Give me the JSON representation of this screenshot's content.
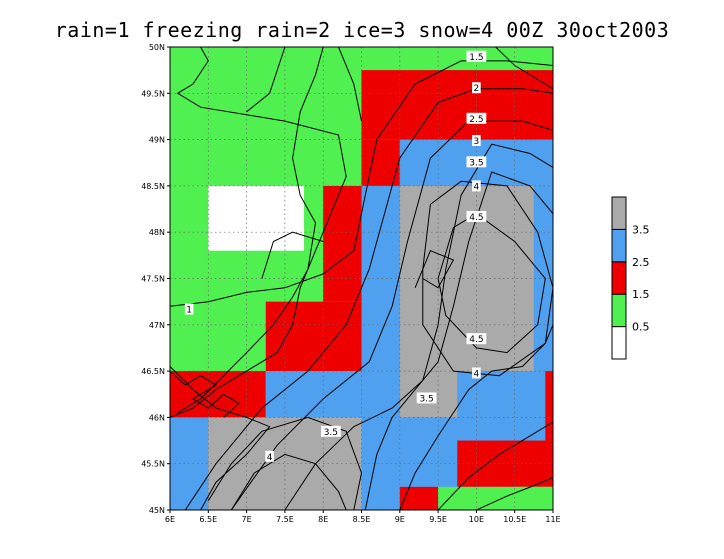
{
  "title": "rain=1  freezing rain=2  ice=3  snow=4  00Z 30oct2003",
  "chart_data": {
    "type": "heatmap",
    "x_range": [
      6,
      11
    ],
    "y_range": [
      45,
      50
    ],
    "x_ticks": [
      "6E",
      "6.5E",
      "7E",
      "7.5E",
      "8E",
      "8.5E",
      "9E",
      "9.5E",
      "10E",
      "10.5E",
      "11E"
    ],
    "y_ticks": [
      "45N",
      "45.5N",
      "46N",
      "46.5N",
      "47N",
      "47.5N",
      "48N",
      "48.5N",
      "49N",
      "49.5N",
      "50N"
    ],
    "legend": {
      "colors": [
        "#ffffff",
        "#50f050",
        "#ee0000",
        "#50a0f0",
        "#aaaaaa"
      ],
      "labels": [
        "0.5",
        "1.5",
        "2.5",
        "3.5"
      ]
    },
    "colors": {
      "0": "#ffffff",
      "1": "#50f050",
      "2": "#ee0000",
      "3": "#50a0f0",
      "4": "#aaaaaa"
    },
    "cells": [
      {
        "x0": 6,
        "x1": 11,
        "y0": 45,
        "y1": 50,
        "v": 1
      },
      {
        "x0": 8.5,
        "x1": 11,
        "y0": 49,
        "y1": 49.75,
        "v": 2
      },
      {
        "x0": 8.5,
        "x1": 9,
        "y0": 48.5,
        "y1": 49,
        "v": 2
      },
      {
        "x0": 9,
        "x1": 11,
        "y0": 48.5,
        "y1": 49,
        "v": 3
      },
      {
        "x0": 8.5,
        "x1": 11,
        "y0": 46.5,
        "y1": 48.5,
        "v": 3
      },
      {
        "x0": 8,
        "x1": 8.5,
        "y0": 47.25,
        "y1": 48.5,
        "v": 2
      },
      {
        "x0": 7.25,
        "x1": 8.5,
        "y0": 46.5,
        "y1": 47.25,
        "v": 2
      },
      {
        "x0": 6,
        "x1": 7.25,
        "y0": 46,
        "y1": 46.5,
        "v": 2
      },
      {
        "x0": 7.25,
        "x1": 11,
        "y0": 46,
        "y1": 46.5,
        "v": 3
      },
      {
        "x0": 6,
        "x1": 8.5,
        "y0": 45,
        "y1": 46,
        "v": 3
      },
      {
        "x0": 8.5,
        "x1": 9,
        "y0": 45,
        "y1": 46,
        "v": 3
      },
      {
        "x0": 9,
        "x1": 11,
        "y0": 45,
        "y1": 46,
        "v": 3
      },
      {
        "x0": 9,
        "x1": 10.75,
        "y0": 46.5,
        "y1": 48.5,
        "v": 4
      },
      {
        "x0": 9,
        "x1": 9.75,
        "y0": 46,
        "y1": 46.5,
        "v": 4
      },
      {
        "x0": 6.5,
        "x1": 8.5,
        "y0": 45,
        "y1": 46,
        "v": 4
      },
      {
        "x0": 10.75,
        "x1": 11,
        "y0": 46.5,
        "y1": 48.5,
        "v": 3
      },
      {
        "x0": 9.75,
        "x1": 11,
        "y0": 45.75,
        "y1": 46,
        "v": 3
      },
      {
        "x0": 9.75,
        "x1": 10.75,
        "y0": 46,
        "y1": 46.5,
        "v": 3
      },
      {
        "x0": 9.75,
        "x1": 11,
        "y0": 45.25,
        "y1": 45.75,
        "v": 2
      },
      {
        "x0": 10.9,
        "x1": 11,
        "y0": 45.75,
        "y1": 46.5,
        "v": 2
      },
      {
        "x0": 9,
        "x1": 9.5,
        "y0": 45,
        "y1": 45.25,
        "v": 2
      },
      {
        "x0": 9.5,
        "x1": 11,
        "y0": 45,
        "y1": 45.25,
        "v": 1
      },
      {
        "x0": 10.5,
        "x1": 11,
        "y0": 45.15,
        "y1": 45.25,
        "v": 1
      },
      {
        "x0": 6.5,
        "x1": 7.75,
        "y0": 47.8,
        "y1": 48.5,
        "v": 0
      },
      {
        "x0": 9,
        "x1": 10.75,
        "y0": 48.5,
        "y1": 49,
        "v": 3
      },
      {
        "x0": 8.5,
        "x1": 9,
        "y0": 46.5,
        "y1": 47.25,
        "v": 3
      }
    ],
    "contour_labels": [
      {
        "text": "1.5",
        "x": 10.0,
        "y": 49.9
      },
      {
        "text": "2",
        "x": 10.0,
        "y": 49.56
      },
      {
        "text": "2.5",
        "x": 10.0,
        "y": 49.23
      },
      {
        "text": "3",
        "x": 10.0,
        "y": 48.99
      },
      {
        "text": "3.5",
        "x": 10.0,
        "y": 48.76
      },
      {
        "text": "4",
        "x": 10.0,
        "y": 48.5
      },
      {
        "text": "4.5",
        "x": 10.0,
        "y": 48.17
      },
      {
        "text": "4.5",
        "x": 10.0,
        "y": 46.85
      },
      {
        "text": "4",
        "x": 10.0,
        "y": 46.48
      },
      {
        "text": "3.5",
        "x": 9.35,
        "y": 46.21
      },
      {
        "text": "3.5",
        "x": 8.1,
        "y": 45.85
      },
      {
        "text": "4",
        "x": 7.3,
        "y": 45.58
      },
      {
        "text": "1",
        "x": 6.25,
        "y": 47.17
      }
    ],
    "contours": [
      [
        [
          6.0,
          47.2
        ],
        [
          6.5,
          47.25
        ],
        [
          7.0,
          47.35
        ],
        [
          7.5,
          47.4
        ],
        [
          8.0,
          47.55
        ],
        [
          8.4,
          47.8
        ],
        [
          8.55,
          48.4
        ],
        [
          8.7,
          49.0
        ],
        [
          9.2,
          49.6
        ],
        [
          9.8,
          49.85
        ],
        [
          10.4,
          49.85
        ],
        [
          11.0,
          49.8
        ]
      ],
      [
        [
          6.2,
          45.0
        ],
        [
          6.6,
          45.5
        ],
        [
          7.2,
          46.1
        ],
        [
          7.8,
          46.5
        ],
        [
          8.3,
          47.0
        ],
        [
          8.6,
          47.6
        ],
        [
          8.8,
          48.2
        ],
        [
          9.0,
          48.8
        ],
        [
          9.5,
          49.4
        ],
        [
          10.0,
          49.55
        ],
        [
          10.6,
          49.55
        ],
        [
          11.0,
          49.5
        ]
      ],
      [
        [
          6.8,
          45.0
        ],
        [
          7.4,
          45.7
        ],
        [
          8.0,
          46.2
        ],
        [
          8.6,
          46.6
        ],
        [
          8.9,
          47.2
        ],
        [
          9.1,
          47.9
        ],
        [
          9.4,
          48.8
        ],
        [
          9.9,
          49.2
        ],
        [
          10.6,
          49.2
        ],
        [
          11.0,
          49.1
        ]
      ],
      [
        [
          7.5,
          45.0
        ],
        [
          7.9,
          45.5
        ],
        [
          8.4,
          45.9
        ],
        [
          8.9,
          46.1
        ],
        [
          9.3,
          46.4
        ],
        [
          9.5,
          47.0
        ],
        [
          9.6,
          47.6
        ],
        [
          9.8,
          48.4
        ],
        [
          10.2,
          48.95
        ],
        [
          10.7,
          48.85
        ],
        [
          11.0,
          48.7
        ]
      ],
      [
        [
          8.55,
          45.0
        ],
        [
          8.7,
          45.6
        ],
        [
          8.9,
          46.0
        ],
        [
          9.2,
          46.3
        ],
        [
          9.5,
          46.6
        ],
        [
          9.7,
          47.2
        ],
        [
          9.9,
          47.9
        ],
        [
          10.2,
          48.65
        ],
        [
          10.7,
          48.5
        ],
        [
          11.0,
          48.2
        ]
      ],
      [
        [
          9.0,
          45.0
        ],
        [
          9.2,
          45.4
        ],
        [
          9.5,
          45.8
        ],
        [
          9.9,
          46.3
        ],
        [
          10.2,
          46.5
        ],
        [
          10.6,
          46.55
        ],
        [
          10.9,
          46.8
        ],
        [
          11.0,
          47.0
        ]
      ],
      [
        [
          9.5,
          45.0
        ],
        [
          9.9,
          45.35
        ],
        [
          10.3,
          45.6
        ],
        [
          10.7,
          45.8
        ],
        [
          11.0,
          45.95
        ]
      ],
      [
        [
          10.0,
          45.0
        ],
        [
          10.4,
          45.15
        ],
        [
          10.8,
          45.28
        ],
        [
          11.0,
          45.35
        ]
      ],
      [
        [
          9.5,
          47.5
        ],
        [
          9.7,
          48.05
        ],
        [
          10.0,
          48.2
        ],
        [
          10.5,
          47.9
        ],
        [
          10.9,
          47.5
        ],
        [
          10.8,
          47.0
        ],
        [
          10.4,
          46.7
        ],
        [
          10.0,
          46.75
        ],
        [
          9.6,
          47.1
        ],
        [
          9.5,
          47.5
        ]
      ],
      [
        [
          9.3,
          47.6
        ],
        [
          9.4,
          48.3
        ],
        [
          9.8,
          48.55
        ],
        [
          10.4,
          48.5
        ],
        [
          10.8,
          48.0
        ],
        [
          11.0,
          47.4
        ],
        [
          10.9,
          46.8
        ],
        [
          10.3,
          46.45
        ],
        [
          9.7,
          46.5
        ],
        [
          9.3,
          47.0
        ],
        [
          9.3,
          47.6
        ]
      ],
      [
        [
          6.5,
          45.1
        ],
        [
          6.8,
          45.5
        ],
        [
          7.2,
          45.85
        ],
        [
          7.8,
          46.0
        ],
        [
          8.3,
          45.85
        ],
        [
          8.5,
          45.4
        ],
        [
          8.4,
          45.0
        ]
      ],
      [
        [
          6.8,
          45.0
        ],
        [
          7.1,
          45.4
        ],
        [
          7.5,
          45.6
        ],
        [
          7.9,
          45.5
        ],
        [
          8.2,
          45.2
        ],
        [
          8.3,
          45.0
        ]
      ],
      [
        [
          6.4,
          50.0
        ],
        [
          6.5,
          49.85
        ],
        [
          6.3,
          49.6
        ],
        [
          6.1,
          49.5
        ],
        [
          6.4,
          49.35
        ],
        [
          7.5,
          49.2
        ],
        [
          8.2,
          49.05
        ],
        [
          8.3,
          48.6
        ],
        [
          8.1,
          48.2
        ],
        [
          7.9,
          47.8
        ],
        [
          7.7,
          47.4
        ],
        [
          7.6,
          47.0
        ],
        [
          7.4,
          46.7
        ],
        [
          7.0,
          46.5
        ],
        [
          6.6,
          46.3
        ],
        [
          6.3,
          46.1
        ],
        [
          6.0,
          46.0
        ]
      ],
      [
        [
          7.5,
          50.0
        ],
        [
          7.3,
          49.5
        ],
        [
          7.0,
          49.3
        ]
      ],
      [
        [
          8.0,
          50.0
        ],
        [
          7.9,
          49.7
        ],
        [
          7.7,
          49.3
        ],
        [
          7.6,
          48.8
        ],
        [
          7.7,
          48.4
        ],
        [
          7.9,
          48.1
        ],
        [
          7.8,
          47.6
        ],
        [
          7.6,
          47.3
        ],
        [
          7.35,
          47.0
        ],
        [
          7.0,
          46.7
        ],
        [
          6.7,
          46.45
        ],
        [
          6.4,
          46.2
        ],
        [
          6.1,
          46.05
        ]
      ],
      [
        [
          6.0,
          46.55
        ],
        [
          6.3,
          46.3
        ],
        [
          6.6,
          46.1
        ],
        [
          7.0,
          46.0
        ],
        [
          7.3,
          45.9
        ],
        [
          7.0,
          45.6
        ],
        [
          6.6,
          45.3
        ],
        [
          6.4,
          45.0
        ]
      ],
      [
        [
          6.0,
          46.5
        ],
        [
          6.2,
          46.35
        ],
        [
          6.4,
          46.45
        ],
        [
          6.6,
          46.35
        ],
        [
          6.3,
          46.2
        ],
        [
          6.5,
          46.1
        ],
        [
          6.7,
          46.25
        ],
        [
          6.9,
          46.15
        ],
        [
          6.7,
          46.0
        ]
      ],
      [
        [
          8.2,
          50.0
        ],
        [
          8.4,
          49.6
        ],
        [
          8.5,
          49.2
        ]
      ],
      [
        [
          7.2,
          47.5
        ],
        [
          7.35,
          47.9
        ],
        [
          7.6,
          48.0
        ],
        [
          8.0,
          47.9
        ]
      ],
      [
        [
          10.25,
          50.0
        ],
        [
          10.5,
          49.8
        ],
        [
          10.9,
          49.6
        ],
        [
          11.0,
          49.55
        ]
      ],
      [
        [
          9.2,
          47.4
        ],
        [
          9.4,
          47.8
        ],
        [
          9.7,
          47.7
        ],
        [
          9.5,
          47.4
        ],
        [
          9.3,
          47.5
        ]
      ]
    ]
  }
}
